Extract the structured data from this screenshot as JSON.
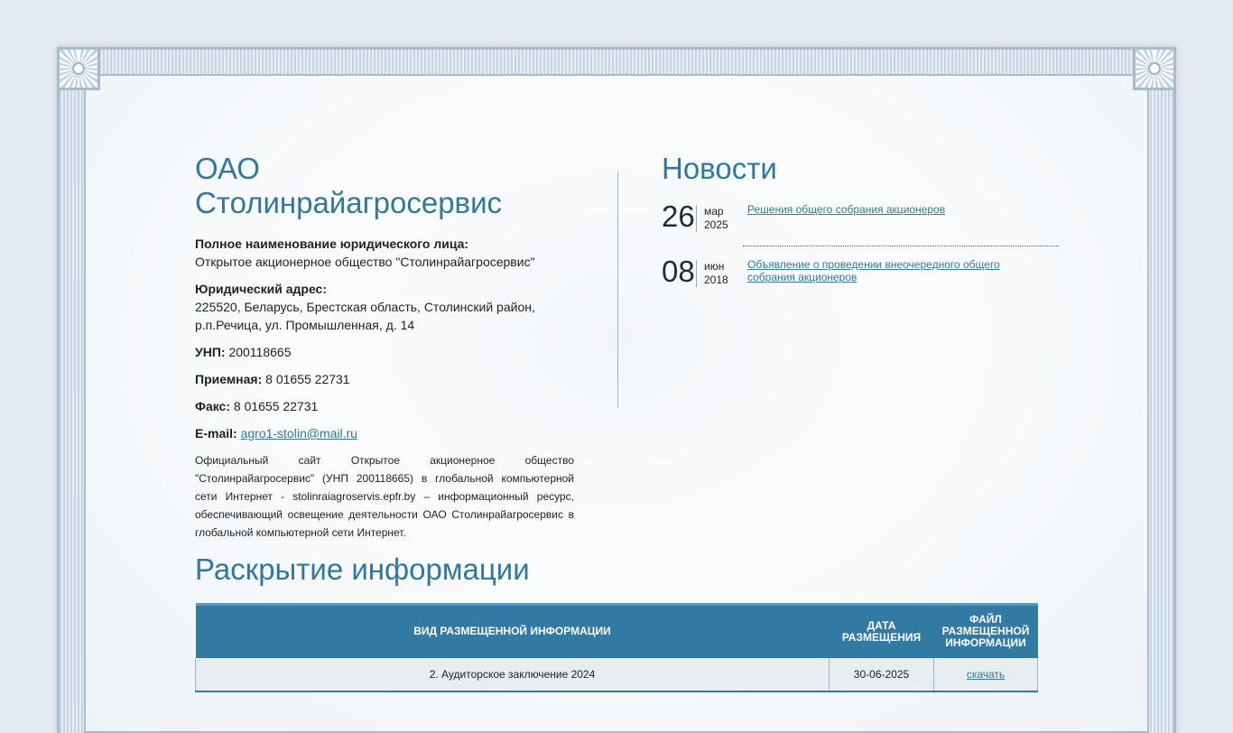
{
  "company": {
    "title": "ОАО Столинрайагросервис",
    "full_name_label": "Полное наименование юридического лица:",
    "full_name": "Открытое акционерное общество \"Столинрайагросервис\"",
    "address_label": "Юридический адрес:",
    "address": "225520, Беларусь, Брестская область, Столинский район, р.п.Речица, ул. Промышленная, д. 14",
    "unp_label": "УНП:",
    "unp": "200118665",
    "reception_label": "Приемная:",
    "reception": "8 01655 22731",
    "fax_label": "Факс:",
    "fax": "8 01655 22731",
    "email_label": "E-mail:",
    "email": "agro1-stolin@mail.ru",
    "description": "Официальный сайт Открытое акционерное общество \"Столинрайагросервис\" (УНП 200118665) в глобальной компьютерной сети Интернет - stolinraiagroservis.epfr.by – информационный ресурс, обеспечивающий освещение деятельности ОАО Столинрайагросервис в глобальной компьютерной сети Интернет."
  },
  "news": {
    "title": "Новости",
    "items": [
      {
        "day": "26",
        "month": "мар",
        "year": "2025",
        "title": "Решения общего собрания акционеров"
      },
      {
        "day": "08",
        "month": "июн",
        "year": "2018",
        "title": "Объявление о проведении внеочередного общего собрания акционеров"
      }
    ]
  },
  "disclosure": {
    "title": "Раскрытие информации",
    "columns": [
      "ВИД РАЗМЕЩЕННОЙ ИНФОРМАЦИИ",
      "ДАТА РАЗМЕЩЕНИЯ",
      "ФАЙЛ РАЗМЕЩЕННОЙ ИНФОРМАЦИИ"
    ],
    "rows": [
      {
        "type": "2. Аудиторское заключение 2024",
        "date": "30-06-2025",
        "file": "скачать"
      }
    ]
  },
  "colors": {
    "accent": "#317aa3",
    "frame": "#a9bccd"
  }
}
